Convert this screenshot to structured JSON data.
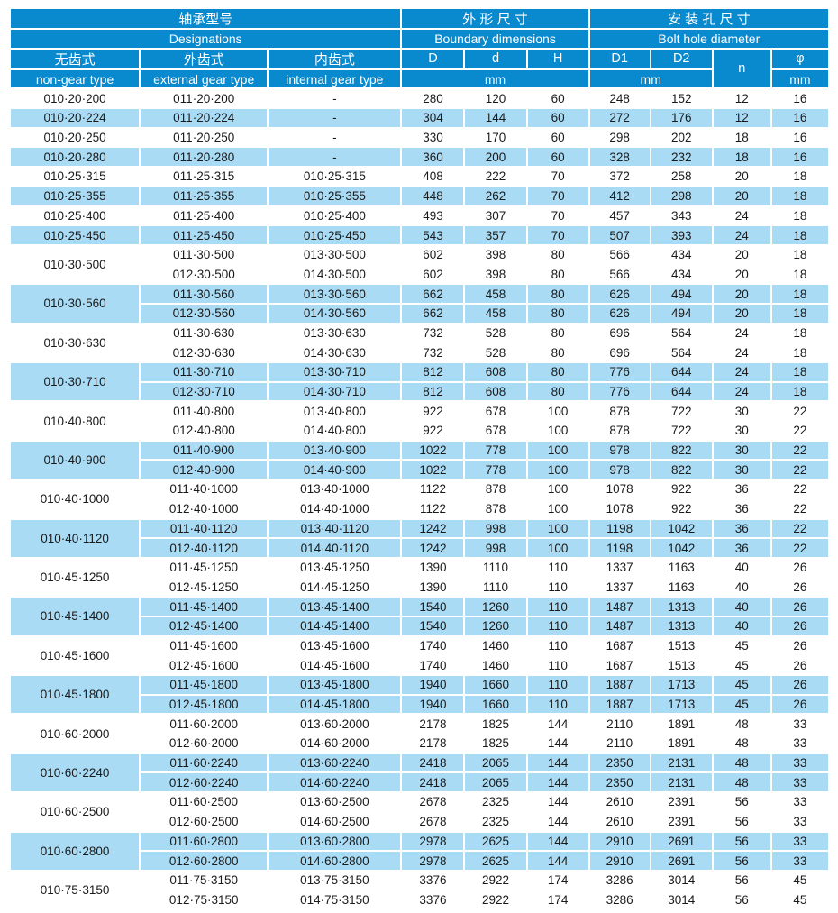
{
  "header": {
    "designations_cjk": "轴承型号",
    "designations_eng": "Designations",
    "boundary_cjk": "外 形 尺 寸",
    "boundary_eng": "Boundary dimensions",
    "bolt_cjk": "安 装 孔 尺 寸",
    "bolt_eng": "Bolt hole diameter",
    "non_gear_cjk": "无齿式",
    "non_gear_eng": "non-gear type",
    "external_gear_cjk": "外齿式",
    "external_gear_eng": "external gear type",
    "internal_gear_cjk": "内齿式",
    "internal_gear_eng": "internal gear type",
    "col_D": "D",
    "col_d": "d",
    "col_H": "H",
    "col_D1": "D1",
    "col_D2": "D2",
    "col_n": "n",
    "col_phi": "φ",
    "unit_mm_boundary": "mm",
    "unit_mm_bolt": "mm",
    "unit_mm_phi": "mm"
  },
  "colors": {
    "header_blue": "#0989ce",
    "row_light_blue": "#a9dbf4",
    "row_white": "#ffffff",
    "text_dark": "#1a1a1a",
    "text_white": "#ffffff"
  },
  "table": {
    "groups": [
      {
        "non_gear": "010·20·200",
        "shaded": false,
        "sub": [
          {
            "external": "011·20·200",
            "internal": "-",
            "D": "280",
            "d": "120",
            "H": "60",
            "D1": "248",
            "D2": "152",
            "n": "12",
            "phi": "16"
          }
        ]
      },
      {
        "non_gear": "010·20·224",
        "shaded": true,
        "sub": [
          {
            "external": "011·20·224",
            "internal": "-",
            "D": "304",
            "d": "144",
            "H": "60",
            "D1": "272",
            "D2": "176",
            "n": "12",
            "phi": "16"
          }
        ]
      },
      {
        "non_gear": "010·20·250",
        "shaded": false,
        "sub": [
          {
            "external": "011·20·250",
            "internal": "-",
            "D": "330",
            "d": "170",
            "H": "60",
            "D1": "298",
            "D2": "202",
            "n": "18",
            "phi": "16"
          }
        ]
      },
      {
        "non_gear": "010·20·280",
        "shaded": true,
        "sub": [
          {
            "external": "011·20·280",
            "internal": "-",
            "D": "360",
            "d": "200",
            "H": "60",
            "D1": "328",
            "D2": "232",
            "n": "18",
            "phi": "16"
          }
        ]
      },
      {
        "non_gear": "010·25·315",
        "shaded": false,
        "sub": [
          {
            "external": "011·25·315",
            "internal": "010·25·315",
            "D": "408",
            "d": "222",
            "H": "70",
            "D1": "372",
            "D2": "258",
            "n": "20",
            "phi": "18"
          }
        ]
      },
      {
        "non_gear": "010·25·355",
        "shaded": true,
        "sub": [
          {
            "external": "011·25·355",
            "internal": "010·25·355",
            "D": "448",
            "d": "262",
            "H": "70",
            "D1": "412",
            "D2": "298",
            "n": "20",
            "phi": "18"
          }
        ]
      },
      {
        "non_gear": "010·25·400",
        "shaded": false,
        "sub": [
          {
            "external": "011·25·400",
            "internal": "010·25·400",
            "D": "493",
            "d": "307",
            "H": "70",
            "D1": "457",
            "D2": "343",
            "n": "24",
            "phi": "18"
          }
        ]
      },
      {
        "non_gear": "010·25·450",
        "shaded": true,
        "sub": [
          {
            "external": "011·25·450",
            "internal": "010·25·450",
            "D": "543",
            "d": "357",
            "H": "70",
            "D1": "507",
            "D2": "393",
            "n": "24",
            "phi": "18"
          }
        ]
      },
      {
        "non_gear": "010·30·500",
        "shaded": false,
        "sub": [
          {
            "external": "011·30·500",
            "internal": "013·30·500",
            "D": "602",
            "d": "398",
            "H": "80",
            "D1": "566",
            "D2": "434",
            "n": "20",
            "phi": "18"
          },
          {
            "external": "012·30·500",
            "internal": "014·30·500",
            "D": "602",
            "d": "398",
            "H": "80",
            "D1": "566",
            "D2": "434",
            "n": "20",
            "phi": "18"
          }
        ]
      },
      {
        "non_gear": "010·30·560",
        "shaded": true,
        "sub": [
          {
            "external": "011·30·560",
            "internal": "013·30·560",
            "D": "662",
            "d": "458",
            "H": "80",
            "D1": "626",
            "D2": "494",
            "n": "20",
            "phi": "18"
          },
          {
            "external": "012·30·560",
            "internal": "014·30·560",
            "D": "662",
            "d": "458",
            "H": "80",
            "D1": "626",
            "D2": "494",
            "n": "20",
            "phi": "18"
          }
        ]
      },
      {
        "non_gear": "010·30·630",
        "shaded": false,
        "sub": [
          {
            "external": "011·30·630",
            "internal": "013·30·630",
            "D": "732",
            "d": "528",
            "H": "80",
            "D1": "696",
            "D2": "564",
            "n": "24",
            "phi": "18"
          },
          {
            "external": "012·30·630",
            "internal": "014·30·630",
            "D": "732",
            "d": "528",
            "H": "80",
            "D1": "696",
            "D2": "564",
            "n": "24",
            "phi": "18"
          }
        ]
      },
      {
        "non_gear": "010·30·710",
        "shaded": true,
        "sub": [
          {
            "external": "011·30·710",
            "internal": "013·30·710",
            "D": "812",
            "d": "608",
            "H": "80",
            "D1": "776",
            "D2": "644",
            "n": "24",
            "phi": "18"
          },
          {
            "external": "012·30·710",
            "internal": "014·30·710",
            "D": "812",
            "d": "608",
            "H": "80",
            "D1": "776",
            "D2": "644",
            "n": "24",
            "phi": "18"
          }
        ]
      },
      {
        "non_gear": "010·40·800",
        "shaded": false,
        "sub": [
          {
            "external": "011·40·800",
            "internal": "013·40·800",
            "D": "922",
            "d": "678",
            "H": "100",
            "D1": "878",
            "D2": "722",
            "n": "30",
            "phi": "22"
          },
          {
            "external": "012·40·800",
            "internal": "014·40·800",
            "D": "922",
            "d": "678",
            "H": "100",
            "D1": "878",
            "D2": "722",
            "n": "30",
            "phi": "22"
          }
        ]
      },
      {
        "non_gear": "010·40·900",
        "shaded": true,
        "sub": [
          {
            "external": "011·40·900",
            "internal": "013·40·900",
            "D": "1022",
            "d": "778",
            "H": "100",
            "D1": "978",
            "D2": "822",
            "n": "30",
            "phi": "22"
          },
          {
            "external": "012·40·900",
            "internal": "014·40·900",
            "D": "1022",
            "d": "778",
            "H": "100",
            "D1": "978",
            "D2": "822",
            "n": "30",
            "phi": "22"
          }
        ]
      },
      {
        "non_gear": "010·40·1000",
        "shaded": false,
        "sub": [
          {
            "external": "011·40·1000",
            "internal": "013·40·1000",
            "D": "1122",
            "d": "878",
            "H": "100",
            "D1": "1078",
            "D2": "922",
            "n": "36",
            "phi": "22"
          },
          {
            "external": "012·40·1000",
            "internal": "014·40·1000",
            "D": "1122",
            "d": "878",
            "H": "100",
            "D1": "1078",
            "D2": "922",
            "n": "36",
            "phi": "22"
          }
        ]
      },
      {
        "non_gear": "010·40·1120",
        "shaded": true,
        "sub": [
          {
            "external": "011·40·1120",
            "internal": "013·40·1120",
            "D": "1242",
            "d": "998",
            "H": "100",
            "D1": "1198",
            "D2": "1042",
            "n": "36",
            "phi": "22"
          },
          {
            "external": "012·40·1120",
            "internal": "014·40·1120",
            "D": "1242",
            "d": "998",
            "H": "100",
            "D1": "1198",
            "D2": "1042",
            "n": "36",
            "phi": "22"
          }
        ]
      },
      {
        "non_gear": "010·45·1250",
        "shaded": false,
        "sub": [
          {
            "external": "011·45·1250",
            "internal": "013·45·1250",
            "D": "1390",
            "d": "1110",
            "H": "110",
            "D1": "1337",
            "D2": "1163",
            "n": "40",
            "phi": "26"
          },
          {
            "external": "012·45·1250",
            "internal": "014·45·1250",
            "D": "1390",
            "d": "1110",
            "H": "110",
            "D1": "1337",
            "D2": "1163",
            "n": "40",
            "phi": "26"
          }
        ]
      },
      {
        "non_gear": "010·45·1400",
        "shaded": true,
        "sub": [
          {
            "external": "011·45·1400",
            "internal": "013·45·1400",
            "D": "1540",
            "d": "1260",
            "H": "110",
            "D1": "1487",
            "D2": "1313",
            "n": "40",
            "phi": "26"
          },
          {
            "external": "012·45·1400",
            "internal": "014·45·1400",
            "D": "1540",
            "d": "1260",
            "H": "110",
            "D1": "1487",
            "D2": "1313",
            "n": "40",
            "phi": "26"
          }
        ]
      },
      {
        "non_gear": "010·45·1600",
        "shaded": false,
        "sub": [
          {
            "external": "011·45·1600",
            "internal": "013·45·1600",
            "D": "1740",
            "d": "1460",
            "H": "110",
            "D1": "1687",
            "D2": "1513",
            "n": "45",
            "phi": "26"
          },
          {
            "external": "012·45·1600",
            "internal": "014·45·1600",
            "D": "1740",
            "d": "1460",
            "H": "110",
            "D1": "1687",
            "D2": "1513",
            "n": "45",
            "phi": "26"
          }
        ]
      },
      {
        "non_gear": "010·45·1800",
        "shaded": true,
        "sub": [
          {
            "external": "011·45·1800",
            "internal": "013·45·1800",
            "D": "1940",
            "d": "1660",
            "H": "110",
            "D1": "1887",
            "D2": "1713",
            "n": "45",
            "phi": "26"
          },
          {
            "external": "012·45·1800",
            "internal": "014·45·1800",
            "D": "1940",
            "d": "1660",
            "H": "110",
            "D1": "1887",
            "D2": "1713",
            "n": "45",
            "phi": "26"
          }
        ]
      },
      {
        "non_gear": "010·60·2000",
        "shaded": false,
        "sub": [
          {
            "external": "011·60·2000",
            "internal": "013·60·2000",
            "D": "2178",
            "d": "1825",
            "H": "144",
            "D1": "2110",
            "D2": "1891",
            "n": "48",
            "phi": "33"
          },
          {
            "external": "012·60·2000",
            "internal": "014·60·2000",
            "D": "2178",
            "d": "1825",
            "H": "144",
            "D1": "2110",
            "D2": "1891",
            "n": "48",
            "phi": "33"
          }
        ]
      },
      {
        "non_gear": "010·60·2240",
        "shaded": true,
        "sub": [
          {
            "external": "011·60·2240",
            "internal": "013·60·2240",
            "D": "2418",
            "d": "2065",
            "H": "144",
            "D1": "2350",
            "D2": "2131",
            "n": "48",
            "phi": "33"
          },
          {
            "external": "012·60·2240",
            "internal": "014·60·2240",
            "D": "2418",
            "d": "2065",
            "H": "144",
            "D1": "2350",
            "D2": "2131",
            "n": "48",
            "phi": "33"
          }
        ]
      },
      {
        "non_gear": "010·60·2500",
        "shaded": false,
        "sub": [
          {
            "external": "011·60·2500",
            "internal": "013·60·2500",
            "D": "2678",
            "d": "2325",
            "H": "144",
            "D1": "2610",
            "D2": "2391",
            "n": "56",
            "phi": "33"
          },
          {
            "external": "012·60·2500",
            "internal": "014·60·2500",
            "D": "2678",
            "d": "2325",
            "H": "144",
            "D1": "2610",
            "D2": "2391",
            "n": "56",
            "phi": "33"
          }
        ]
      },
      {
        "non_gear": "010·60·2800",
        "shaded": true,
        "sub": [
          {
            "external": "011·60·2800",
            "internal": "013·60·2800",
            "D": "2978",
            "d": "2625",
            "H": "144",
            "D1": "2910",
            "D2": "2691",
            "n": "56",
            "phi": "33"
          },
          {
            "external": "012·60·2800",
            "internal": "014·60·2800",
            "D": "2978",
            "d": "2625",
            "H": "144",
            "D1": "2910",
            "D2": "2691",
            "n": "56",
            "phi": "33"
          }
        ]
      },
      {
        "non_gear": "010·75·3150",
        "shaded": false,
        "sub": [
          {
            "external": "011·75·3150",
            "internal": "013·75·3150",
            "D": "3376",
            "d": "2922",
            "H": "174",
            "D1": "3286",
            "D2": "3014",
            "n": "56",
            "phi": "45"
          },
          {
            "external": "012·75·3150",
            "internal": "014·75·3150",
            "D": "3376",
            "d": "2922",
            "H": "174",
            "D1": "3286",
            "D2": "3014",
            "n": "56",
            "phi": "45"
          }
        ]
      }
    ]
  }
}
